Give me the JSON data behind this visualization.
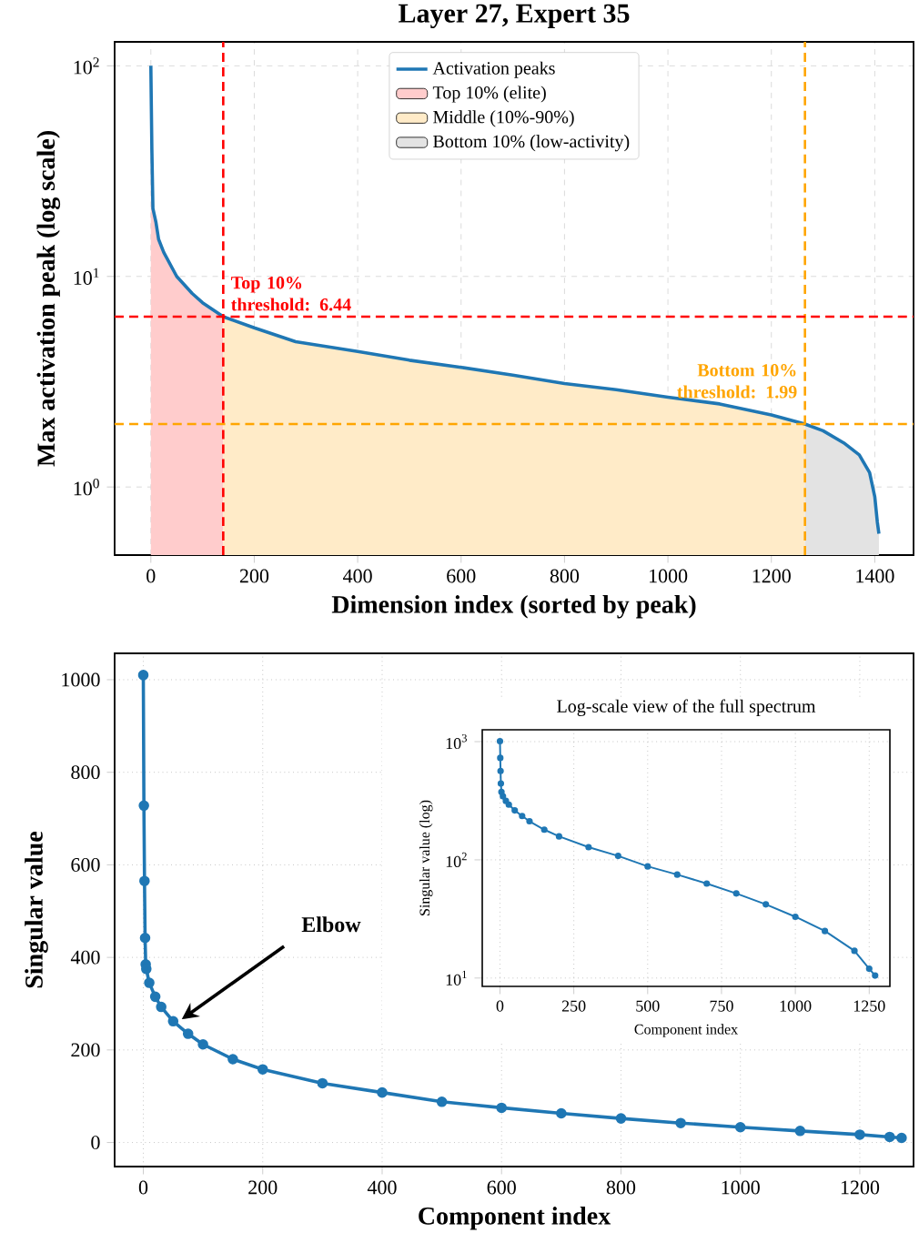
{
  "chart_data": [
    {
      "type": "line",
      "title": "Layer 27, Expert 35",
      "xlabel": "Dimension index (sorted by peak)",
      "ylabel": "Max activation peak (log scale)",
      "log": "y",
      "grid": true,
      "legend": "top",
      "line_style": "solid",
      "xlim": [
        -70,
        1475
      ],
      "ylim": [
        0.475,
        130
      ],
      "xticks": [
        0,
        200,
        400,
        600,
        800,
        1000,
        1200,
        1400
      ],
      "yticks": [
        {
          "value": 1,
          "label": "10$^{0}$"
        },
        {
          "value": 10,
          "label": "10$^{1}$"
        },
        {
          "value": 100,
          "label": "10$^{2}$"
        }
      ],
      "series": [
        {
          "name": "Activation peaks",
          "type": "line",
          "color": "#1f77b4",
          "x": [
            0,
            2,
            4,
            10,
            15,
            25,
            50,
            80,
            100,
            140,
            200,
            280,
            400,
            500,
            600,
            700,
            800,
            900,
            1000,
            1100,
            1200,
            1265,
            1300,
            1340,
            1370,
            1390,
            1400,
            1405,
            1408
          ],
          "values": [
            100,
            40,
            21,
            18,
            15,
            13,
            10,
            8.3,
            7.5,
            6.44,
            5.7,
            4.9,
            4.4,
            4.0,
            3.7,
            3.4,
            3.1,
            2.9,
            2.67,
            2.48,
            2.2,
            1.99,
            1.85,
            1.62,
            1.42,
            1.17,
            0.9,
            0.68,
            0.6
          ]
        },
        {
          "name": "Top 10% (elite)",
          "type": "area",
          "color": "#ffcccc",
          "x": [
            0,
            2,
            4,
            10,
            15,
            25,
            50,
            80,
            100,
            140
          ],
          "values": [
            100,
            40,
            21,
            18,
            15,
            13,
            10,
            8.3,
            7.5,
            6.44
          ]
        },
        {
          "name": "Middle (10%-90%)",
          "type": "area",
          "color": "#ffebc8",
          "x": [
            140,
            200,
            280,
            400,
            500,
            600,
            700,
            800,
            900,
            1000,
            1100,
            1200,
            1265
          ],
          "values": [
            6.44,
            5.7,
            4.9,
            4.4,
            4.0,
            3.7,
            3.4,
            3.1,
            2.9,
            2.67,
            2.48,
            2.2,
            1.99
          ]
        },
        {
          "name": "Bottom 10% (low-activity)",
          "type": "area",
          "color": "#e3e3e3",
          "x": [
            1265,
            1300,
            1340,
            1370,
            1390,
            1400,
            1405,
            1408
          ],
          "values": [
            1.99,
            1.85,
            1.62,
            1.42,
            1.17,
            0.9,
            0.68,
            0.6
          ]
        }
      ],
      "ref_lines": [
        {
          "axis": "x",
          "value": 140,
          "color": "#ff0000",
          "line_style": "dashed"
        },
        {
          "axis": "x",
          "value": 1265,
          "color": "#ffa500",
          "line_style": "dashed"
        },
        {
          "axis": "y",
          "value": 6.44,
          "label": "Top 10% threshold: 6.44",
          "color": "#ff0000",
          "line_style": "dashed"
        },
        {
          "axis": "y",
          "value": 1.99,
          "label": "Bottom 10% threshold: 1.99",
          "color": "#ffa500",
          "line_style": "dashed"
        }
      ]
    },
    {
      "type": "line",
      "xlabel": "Component index",
      "ylabel": "Singular value",
      "grid": true,
      "marker": "circle",
      "line_style": "solid",
      "xlim": [
        -48,
        1290
      ],
      "ylim": [
        -52,
        1057
      ],
      "xticks": [
        0,
        200,
        400,
        600,
        800,
        1000,
        1200
      ],
      "yticks": [
        0,
        200,
        400,
        600,
        800,
        1000
      ],
      "annotations": [
        "Elbow"
      ],
      "series": [
        {
          "color": "#1f77b4",
          "x": [
            0,
            1,
            2,
            3,
            4,
            5,
            10,
            20,
            30,
            50,
            75,
            100,
            150,
            200,
            300,
            400,
            500,
            600,
            700,
            800,
            900,
            1000,
            1100,
            1200,
            1250,
            1270
          ],
          "values": [
            1010,
            728,
            565,
            442,
            385,
            375,
            345,
            315,
            293,
            262,
            235,
            212,
            180,
            158,
            128,
            108,
            88,
            75,
            63,
            52,
            42,
            33,
            25,
            17,
            12,
            10
          ]
        }
      ]
    },
    {
      "type": "line",
      "title": "Log-scale view of the full spectrum",
      "xlabel": "Component index",
      "ylabel": "Singular value (log)",
      "log": "y",
      "grid": true,
      "marker": "circle",
      "line_style": "solid",
      "xlim": [
        -60,
        1320
      ],
      "ylim": [
        8.5,
        1260
      ],
      "xticks": [
        0,
        250,
        500,
        750,
        1000,
        1250
      ],
      "yticks": [
        {
          "value": 10,
          "label": "10$^{1}$"
        },
        {
          "value": 100,
          "label": "10$^{2}$"
        },
        {
          "value": 1000,
          "label": "10$^{3}$"
        }
      ],
      "series": [
        {
          "color": "#1f77b4",
          "x": [
            0,
            1,
            2,
            3,
            4,
            5,
            10,
            20,
            30,
            50,
            75,
            100,
            150,
            200,
            300,
            400,
            500,
            600,
            700,
            800,
            900,
            1000,
            1100,
            1200,
            1250,
            1270
          ],
          "values": [
            1010,
            728,
            565,
            442,
            null,
            375,
            345,
            315,
            293,
            262,
            235,
            212,
            180,
            158,
            128,
            108,
            88,
            75,
            63,
            52,
            42,
            33,
            25,
            17,
            12,
            10.5
          ]
        }
      ]
    }
  ]
}
